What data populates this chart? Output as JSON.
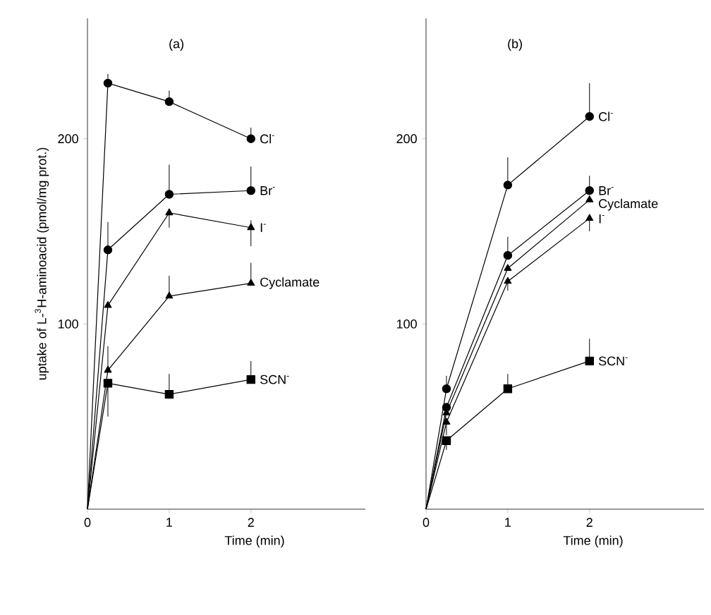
{
  "chart_data": [
    {
      "type": "line",
      "title": "(a)",
      "xlabel": "Time (min)",
      "ylabel": "uptake of L-$^{3}$H-aminoacid (pmol/mg prot.)",
      "xlim": [
        0,
        3.4
      ],
      "ylim": [
        0,
        265
      ],
      "xticks": [
        0,
        1,
        2
      ],
      "yticks": [
        100,
        200
      ],
      "legend": "right",
      "grid": false,
      "line_style": "solid",
      "series": [
        {
          "name": "Cl$^{-}$",
          "color": "#000000",
          "marker": "circle",
          "x": [
            0,
            0.25,
            1,
            2
          ],
          "values": [
            0,
            230,
            220,
            200
          ],
          "errors": [
            null,
            [
              230,
              235
            ],
            [
              220,
              226
            ],
            [
              200,
              206
            ]
          ]
        },
        {
          "name": "Br$^{-}$",
          "color": "#000000",
          "marker": "circle",
          "x": [
            0,
            0.25,
            1,
            2
          ],
          "values": [
            0,
            140,
            170,
            172
          ],
          "errors": [
            null,
            [
              140,
              155
            ],
            [
              170,
              186
            ],
            [
              172,
              185
            ]
          ]
        },
        {
          "name": "I$^{-}$",
          "color": "#000000",
          "marker": "triangle",
          "x": [
            0,
            0.25,
            1,
            2
          ],
          "values": [
            0,
            110,
            160,
            152
          ],
          "errors": [
            null,
            null,
            [
              152,
              162
            ],
            [
              142,
              156
            ]
          ]
        },
        {
          "name": "Cyclamate",
          "color": "#000000",
          "marker": "triangle",
          "x": [
            0,
            0.25,
            1,
            2
          ],
          "values": [
            0,
            75,
            115,
            122
          ],
          "errors": [
            null,
            [
              75,
              88
            ],
            [
              115,
              126
            ],
            [
              122,
              133
            ]
          ]
        },
        {
          "name": "SCN$^{-}$",
          "color": "#000000",
          "marker": "square",
          "x": [
            0,
            0.25,
            1,
            2
          ],
          "values": [
            0,
            68,
            62,
            70
          ],
          "errors": [
            null,
            [
              50,
              68
            ],
            [
              62,
              73
            ],
            [
              70,
              80
            ]
          ]
        }
      ]
    },
    {
      "type": "line",
      "title": "(b)",
      "xlabel": "Time (min)",
      "xlim": [
        0,
        3.4
      ],
      "ylim": [
        0,
        265
      ],
      "xticks": [
        0,
        1,
        2
      ],
      "yticks": [
        100,
        200
      ],
      "legend": "right",
      "grid": false,
      "line_style": "solid",
      "series": [
        {
          "name": "Cl$^{-}$",
          "color": "#000000",
          "marker": "circle",
          "x": [
            0,
            0.25,
            1,
            2
          ],
          "values": [
            0,
            65,
            175,
            212
          ],
          "errors": [
            null,
            [
              65,
              72
            ],
            [
              175,
              190
            ],
            [
              212,
              230
            ]
          ]
        },
        {
          "name": "Br$^{-}$",
          "color": "#000000",
          "marker": "circle",
          "x": [
            0,
            0.25,
            1,
            2
          ],
          "values": [
            0,
            55,
            137,
            172
          ],
          "errors": [
            null,
            null,
            [
              137,
              147
            ],
            [
              172,
              180
            ]
          ]
        },
        {
          "name": "Cyclamate",
          "color": "#000000",
          "marker": "triangle",
          "x": [
            0,
            0.25,
            1,
            2
          ],
          "values": [
            0,
            52,
            130,
            167
          ]
        },
        {
          "name": "I$^{-}$",
          "color": "#000000",
          "marker": "triangle",
          "x": [
            0,
            0.25,
            1,
            2
          ],
          "values": [
            0,
            47,
            123,
            157
          ],
          "errors": [
            null,
            [
              40,
              47
            ],
            [
              118,
              123
            ],
            [
              150,
              157
            ]
          ]
        },
        {
          "name": "SCN$^{-}$",
          "color": "#000000",
          "marker": "square",
          "x": [
            0,
            0.25,
            1,
            2
          ],
          "values": [
            0,
            37,
            65,
            80
          ],
          "errors": [
            null,
            [
              32,
              37
            ],
            [
              65,
              73
            ],
            [
              80,
              92
            ]
          ]
        }
      ]
    }
  ]
}
